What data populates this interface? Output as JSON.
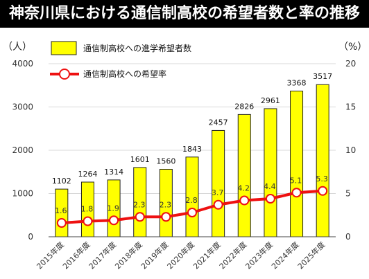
{
  "title": "神奈川県における通信制高校の希望者数と率の推移",
  "chart_data": {
    "type": "bar",
    "categories": [
      "2015年度",
      "2016年度",
      "2017年度",
      "2018年度",
      "2019年度",
      "2020年度",
      "2021年度",
      "2022年度",
      "2023年度",
      "2024年度",
      "2025年度"
    ],
    "series": [
      {
        "name": "通信制高校への進学希望者数",
        "type": "bar",
        "axis": "left",
        "color": "#ffff00",
        "values": [
          1102,
          1264,
          1314,
          1601,
          1560,
          1843,
          2457,
          2826,
          2961,
          3368,
          3517
        ]
      },
      {
        "name": "通信制高校への希望率",
        "type": "line",
        "axis": "right",
        "color": "#ee1111",
        "values": [
          1.6,
          1.8,
          1.9,
          2.3,
          2.3,
          2.8,
          3.7,
          4.2,
          4.4,
          5.1,
          5.3
        ]
      }
    ],
    "ylabel_left": "（人）",
    "ylabel_right": "（%）",
    "ylim_left": [
      0,
      4000
    ],
    "yticks_left": [
      0,
      1000,
      2000,
      3000,
      4000
    ],
    "ylim_right": [
      0,
      20
    ],
    "yticks_right": [
      0,
      5,
      10,
      15,
      20
    ],
    "grid": true,
    "legend": "top-center"
  }
}
